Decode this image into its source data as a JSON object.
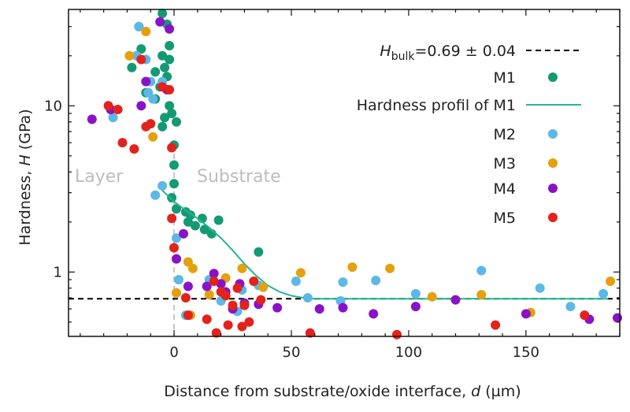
{
  "chart_data": {
    "type": "scatter",
    "xlabel_prefix": "Distance from substrate/oxide interface, ",
    "xlabel_var": "d",
    "xlabel_unit": " (µm)",
    "ylabel_prefix": "Hardness, ",
    "ylabel_var": "H",
    "ylabel_unit": " (GPa)",
    "xlim": [
      -45,
      190
    ],
    "ylim": [
      0.41,
      38
    ],
    "yscale": "log",
    "x_ticks": [
      0,
      50,
      100,
      150
    ],
    "y_ticks": [
      1,
      10
    ],
    "grid": false,
    "legend_position": "top-right",
    "regions": [
      "Layer",
      "Substrate"
    ],
    "bulk_line": {
      "label_var": "H",
      "label_sub": "bulk",
      "label_value": "=0.69 ± 0.04",
      "value": 0.69,
      "color": "#000000"
    },
    "series": [
      {
        "name": "M1",
        "color": "#149a72",
        "points": [
          [
            -15,
            30
          ],
          [
            -5,
            36
          ],
          [
            -3,
            31
          ],
          [
            -2,
            23
          ],
          [
            -14,
            22
          ],
          [
            -5,
            20
          ],
          [
            -2,
            19
          ],
          [
            -4,
            17
          ],
          [
            -3,
            15
          ],
          [
            -18,
            17
          ],
          [
            -8,
            16
          ],
          [
            -6,
            13
          ],
          [
            -12,
            12
          ],
          [
            -8,
            11
          ],
          [
            -2,
            10
          ],
          [
            -1,
            9
          ],
          [
            -4,
            8.5
          ],
          [
            1,
            8
          ],
          [
            -5,
            7.5
          ],
          [
            0,
            5.8
          ],
          [
            0,
            4.4
          ],
          [
            0,
            3.4
          ],
          [
            -1,
            2.8
          ],
          [
            1,
            2.4
          ],
          [
            5,
            2.3
          ],
          [
            7,
            2.2
          ],
          [
            12,
            2.1
          ],
          [
            6,
            2
          ],
          [
            9,
            1.9
          ],
          [
            19,
            2.05
          ],
          [
            13,
            1.8
          ],
          [
            16,
            1.7
          ],
          [
            36,
            1.32
          ]
        ]
      },
      {
        "name": "Hardness profil of M1",
        "type": "line",
        "color": "#27b592",
        "x": [
          -5,
          0,
          5,
          10,
          15,
          20,
          25,
          30,
          35,
          40,
          45,
          50,
          55,
          60,
          70,
          80,
          100,
          120,
          150,
          185
        ],
        "y": [
          3.1,
          2.65,
          2.35,
          2.1,
          1.85,
          1.6,
          1.35,
          1.12,
          0.95,
          0.83,
          0.76,
          0.72,
          0.7,
          0.69,
          0.69,
          0.69,
          0.69,
          0.69,
          0.69,
          0.69
        ]
      },
      {
        "name": "M2",
        "color": "#5cb8e6",
        "points": [
          [
            -15,
            30
          ],
          [
            -16,
            20
          ],
          [
            -12,
            19
          ],
          [
            -10,
            14
          ],
          [
            -5,
            14
          ],
          [
            -11,
            12
          ],
          [
            -9,
            11
          ],
          [
            -26,
            8.5
          ],
          [
            -5,
            3.3
          ],
          [
            -8,
            2.9
          ],
          [
            1,
            1.6
          ],
          [
            2,
            0.9
          ],
          [
            5,
            0.55
          ],
          [
            15,
            0.9
          ],
          [
            20,
            0.67
          ],
          [
            27,
            0.58
          ],
          [
            29,
            0.78
          ],
          [
            36,
            0.83
          ],
          [
            52,
            0.88
          ],
          [
            57,
            0.7
          ],
          [
            72,
            0.87
          ],
          [
            71,
            0.67
          ],
          [
            86,
            0.89
          ],
          [
            103,
            0.74
          ],
          [
            131,
            1.02
          ],
          [
            156,
            0.8
          ],
          [
            169,
            0.62
          ],
          [
            183,
            0.74
          ]
        ]
      },
      {
        "name": "M3",
        "color": "#e5a00d",
        "points": [
          [
            -12,
            28
          ],
          [
            -19,
            20
          ],
          [
            -9,
            6.5
          ],
          [
            1,
            1.2
          ],
          [
            1,
            0.75
          ],
          [
            6,
            1.15
          ],
          [
            7,
            0.55
          ],
          [
            8,
            1.05
          ],
          [
            15,
            0.73
          ],
          [
            22,
            0.92
          ],
          [
            29,
            1.05
          ],
          [
            38,
            0.81
          ],
          [
            54,
            0.99
          ],
          [
            76,
            1.07
          ],
          [
            92,
            1.05
          ],
          [
            110,
            0.71
          ],
          [
            131,
            0.73
          ],
          [
            152,
            0.57
          ],
          [
            186,
            0.88
          ]
        ]
      },
      {
        "name": "M4",
        "color": "#8a12c6",
        "points": [
          [
            -6,
            32
          ],
          [
            -2,
            29
          ],
          [
            -12,
            14
          ],
          [
            -14,
            10
          ],
          [
            -27,
            9.5
          ],
          [
            -35,
            8.3
          ],
          [
            -3,
            12.5
          ],
          [
            1,
            1.2
          ],
          [
            4,
            1.7
          ],
          [
            6,
            0.82
          ],
          [
            14,
            0.82
          ],
          [
            17,
            0.98
          ],
          [
            20,
            0.85
          ],
          [
            22,
            0.76
          ],
          [
            25,
            0.6
          ],
          [
            28,
            0.85
          ],
          [
            30,
            0.65
          ],
          [
            36,
            0.64
          ],
          [
            44,
            0.61
          ],
          [
            62,
            0.6
          ],
          [
            72,
            0.61
          ],
          [
            85,
            0.56
          ],
          [
            103,
            0.62
          ],
          [
            120,
            0.68
          ],
          [
            150,
            0.56
          ],
          [
            177,
            0.52
          ],
          [
            189,
            0.53
          ]
        ]
      },
      {
        "name": "M5",
        "color": "#e2231b",
        "points": [
          [
            -14,
            19
          ],
          [
            -5,
            13
          ],
          [
            -2,
            12.5
          ],
          [
            -10,
            7.8
          ],
          [
            -12,
            7.5
          ],
          [
            -24,
            9.5
          ],
          [
            -28,
            10
          ],
          [
            -22,
            6
          ],
          [
            -17,
            5.5
          ],
          [
            -1,
            5.6
          ],
          [
            -1,
            2.1
          ],
          [
            0,
            1.4
          ],
          [
            5,
            0.7
          ],
          [
            6,
            0.55
          ],
          [
            14,
            0.52
          ],
          [
            17,
            0.88
          ],
          [
            18,
            0.43
          ],
          [
            20,
            0.76
          ],
          [
            22,
            0.72
          ],
          [
            23,
            0.48
          ],
          [
            25,
            0.63
          ],
          [
            27,
            0.8
          ],
          [
            29,
            0.47
          ],
          [
            30,
            0.63
          ],
          [
            32,
            0.5
          ],
          [
            34,
            0.88
          ],
          [
            37,
            0.68
          ],
          [
            58,
            0.43
          ],
          [
            95,
            0.42
          ],
          [
            137,
            0.48
          ],
          [
            175,
            0.55
          ]
        ]
      }
    ]
  }
}
